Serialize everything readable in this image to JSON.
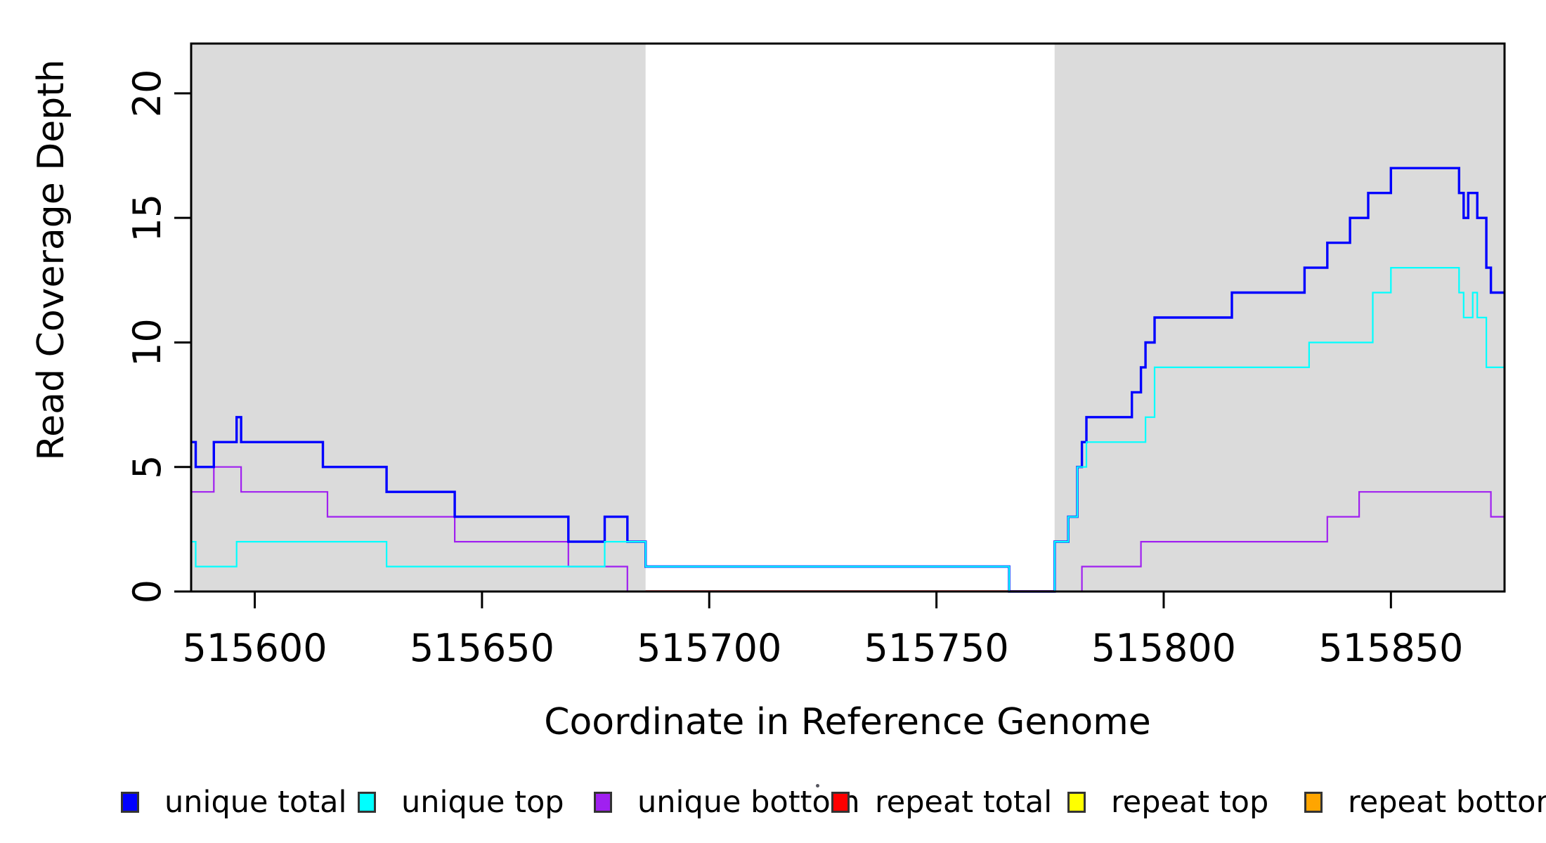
{
  "chart_data": {
    "type": "step-line",
    "title": "",
    "xlabel": "Coordinate in Reference Genome",
    "ylabel": "Read Coverage Depth",
    "xlim": [
      515586,
      515875
    ],
    "ylim": [
      0,
      22
    ],
    "x_ticks": [
      515600,
      515650,
      515700,
      515750,
      515800,
      515850
    ],
    "y_ticks": [
      0,
      5,
      10,
      15,
      20
    ],
    "grid": false,
    "legend_position": "bottom",
    "background_color": "#ffffff",
    "shade_color": "#dbdbdb",
    "regions": [
      {
        "name": "shaded-left",
        "start": 515586,
        "end": 515686,
        "shaded": true
      },
      {
        "name": "gap",
        "start": 515686,
        "end": 515776,
        "shaded": false
      },
      {
        "name": "shaded-right",
        "start": 515776,
        "end": 515875,
        "shaded": true
      }
    ],
    "series": [
      {
        "name": "unique total",
        "color": "#0000ff",
        "line_width": 3.4,
        "points": [
          [
            515586,
            6
          ],
          [
            515587,
            5
          ],
          [
            515591,
            6
          ],
          [
            515596,
            7
          ],
          [
            515597,
            6
          ],
          [
            515615,
            5
          ],
          [
            515629,
            4
          ],
          [
            515644,
            3
          ],
          [
            515669,
            2
          ],
          [
            515677,
            3
          ],
          [
            515682,
            2
          ],
          [
            515686,
            1
          ],
          [
            515766,
            0
          ],
          [
            515776,
            2
          ],
          [
            515779,
            3
          ],
          [
            515781,
            5
          ],
          [
            515782,
            6
          ],
          [
            515783,
            7
          ],
          [
            515793,
            8
          ],
          [
            515795,
            9
          ],
          [
            515796,
            10
          ],
          [
            515798,
            11
          ],
          [
            515815,
            12
          ],
          [
            515831,
            13
          ],
          [
            515836,
            14
          ],
          [
            515841,
            15
          ],
          [
            515845,
            16
          ],
          [
            515850,
            17
          ],
          [
            515865,
            16
          ],
          [
            515866,
            15
          ],
          [
            515867,
            16
          ],
          [
            515869,
            15
          ],
          [
            515871,
            13
          ],
          [
            515872,
            12
          ],
          [
            515875,
            12
          ]
        ]
      },
      {
        "name": "unique top",
        "color": "#00ffff",
        "line_width": 2.2,
        "points": [
          [
            515586,
            2
          ],
          [
            515587,
            1
          ],
          [
            515596,
            2
          ],
          [
            515629,
            1
          ],
          [
            515677,
            2
          ],
          [
            515686,
            1
          ],
          [
            515766,
            0
          ],
          [
            515776,
            2
          ],
          [
            515779,
            3
          ],
          [
            515781,
            5
          ],
          [
            515783,
            6
          ],
          [
            515796,
            7
          ],
          [
            515798,
            9
          ],
          [
            515832,
            10
          ],
          [
            515846,
            12
          ],
          [
            515850,
            13
          ],
          [
            515865,
            12
          ],
          [
            515866,
            11
          ],
          [
            515868,
            12
          ],
          [
            515869,
            11
          ],
          [
            515871,
            9
          ],
          [
            515875,
            9
          ]
        ]
      },
      {
        "name": "unique bottom",
        "color": "#a020f0",
        "line_width": 2.2,
        "points": [
          [
            515586,
            4
          ],
          [
            515591,
            5
          ],
          [
            515597,
            4
          ],
          [
            515616,
            3
          ],
          [
            515644,
            2
          ],
          [
            515669,
            1
          ],
          [
            515682,
            0
          ],
          [
            515782,
            1
          ],
          [
            515795,
            2
          ],
          [
            515836,
            3
          ],
          [
            515843,
            4
          ],
          [
            515872,
            3
          ],
          [
            515875,
            3
          ]
        ]
      },
      {
        "name": "repeat total",
        "color": "#ff0000",
        "line_width": 1.6,
        "points": [
          [
            515586,
            0
          ],
          [
            515875,
            0
          ]
        ]
      },
      {
        "name": "repeat top",
        "color": "#ffff00",
        "line_width": 2.0,
        "points": [
          [
            515586,
            0
          ],
          [
            515875,
            0
          ]
        ]
      },
      {
        "name": "repeat bottom",
        "color": "#ffa500",
        "line_width": 2.4,
        "points": [
          [
            515586,
            0
          ],
          [
            515875,
            0
          ]
        ]
      }
    ],
    "legend": [
      "unique total",
      "unique top",
      "unique bottom",
      "repeat total",
      "repeat top",
      "repeat bottom"
    ]
  }
}
